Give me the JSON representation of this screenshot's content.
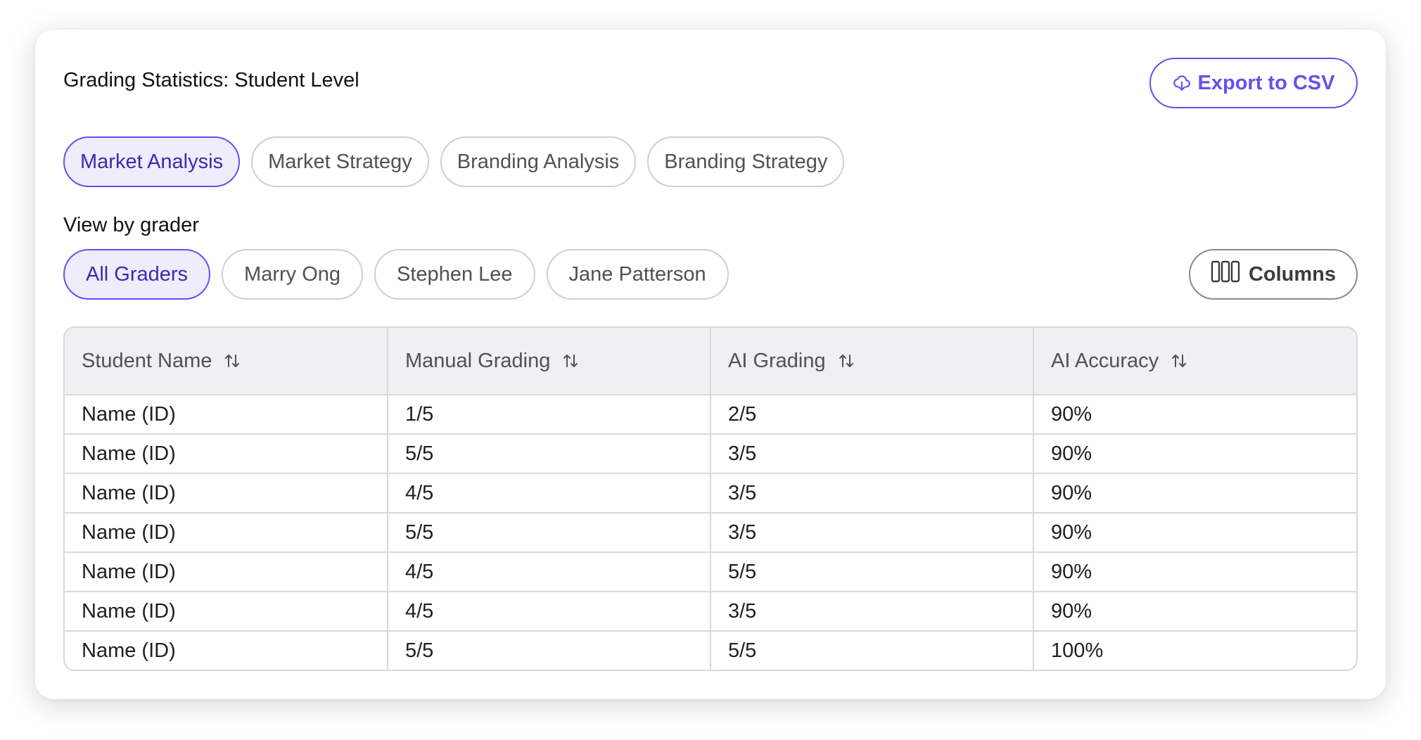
{
  "header": {
    "title": "Grading Statistics: Student Level",
    "export_label": "Export to CSV"
  },
  "task_tabs": [
    {
      "label": "Market Analysis",
      "active": true
    },
    {
      "label": "Market Strategy",
      "active": false
    },
    {
      "label": "Branding Analysis",
      "active": false
    },
    {
      "label": "Branding Strategy",
      "active": false
    }
  ],
  "grader_filter": {
    "label": "View by grader",
    "options": [
      {
        "label": "All Graders",
        "active": true
      },
      {
        "label": "Marry Ong",
        "active": false
      },
      {
        "label": "Stephen Lee",
        "active": false
      },
      {
        "label": "Jane Patterson",
        "active": false
      }
    ],
    "columns_label": "Columns"
  },
  "table": {
    "headers": [
      "Student Name",
      "Manual Grading",
      "AI Grading",
      "AI Accuracy"
    ],
    "rows": [
      [
        "Name (ID)",
        "1/5",
        "2/5",
        "90%"
      ],
      [
        "Name (ID)",
        "5/5",
        "3/5",
        "90%"
      ],
      [
        "Name (ID)",
        "4/5",
        "3/5",
        "90%"
      ],
      [
        "Name (ID)",
        "5/5",
        "3/5",
        "90%"
      ],
      [
        "Name (ID)",
        "4/5",
        "5/5",
        "90%"
      ],
      [
        "Name (ID)",
        "4/5",
        "3/5",
        "90%"
      ],
      [
        "Name (ID)",
        "5/5",
        "5/5",
        "100%"
      ]
    ]
  },
  "icons": {
    "export": "cloud-download-icon",
    "columns": "columns-icon",
    "sort": "sort-arrows-icon"
  },
  "colors": {
    "accent": "#6a4df0",
    "active_chip_bg": "#efedfc",
    "active_chip_text": "#3a2bb0",
    "header_bg": "#f0f0f2",
    "border": "#d9d9de"
  }
}
